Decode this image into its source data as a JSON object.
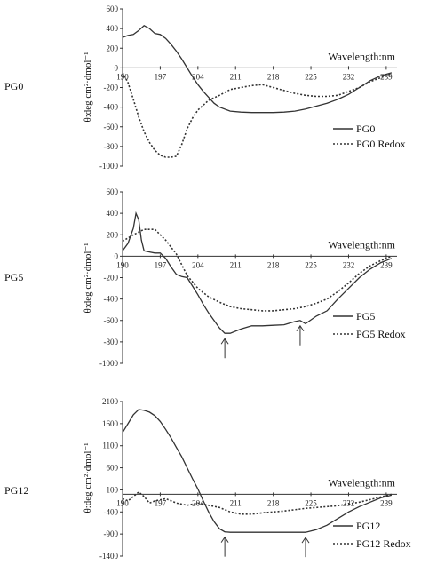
{
  "chart_data": [
    {
      "type": "line",
      "panel_label": "PG0",
      "ylabel": "θ:deg cm²·dmol⁻¹",
      "xlabel": "Wavelength:nm",
      "x_ticks": [
        "190",
        "197",
        "204",
        "211",
        "218",
        "225",
        "232",
        "239"
      ],
      "y_ticks": [
        "600",
        "400",
        "200",
        "0",
        "-200",
        "-400",
        "-600",
        "-800",
        "-1000"
      ],
      "xlim": [
        190,
        241
      ],
      "ylim": [
        -1000,
        600
      ],
      "arrows_at": [],
      "series": [
        {
          "name": "PG0",
          "style": "solid",
          "x": [
            190,
            191,
            192,
            193,
            194,
            195,
            196,
            197,
            198,
            199,
            200,
            201,
            202,
            203,
            204,
            205,
            206,
            207,
            208,
            210,
            212,
            214,
            216,
            218,
            220,
            222,
            224,
            226,
            228,
            230,
            232,
            234,
            236,
            238,
            240
          ],
          "y": [
            310,
            330,
            340,
            380,
            430,
            400,
            350,
            340,
            300,
            240,
            170,
            90,
            0,
            -90,
            -170,
            -240,
            -300,
            -360,
            -400,
            -440,
            -450,
            -455,
            -455,
            -455,
            -450,
            -440,
            -420,
            -390,
            -360,
            -320,
            -270,
            -200,
            -130,
            -80,
            -50
          ]
        },
        {
          "name": "PG0 Redox",
          "style": "dotted",
          "x": [
            190,
            191,
            192,
            193,
            194,
            195,
            196,
            197,
            198,
            199,
            200,
            201,
            202,
            203,
            204,
            205,
            206,
            208,
            210,
            212,
            214,
            216,
            218,
            220,
            222,
            224,
            226,
            228,
            230,
            232,
            234,
            236,
            238,
            240
          ],
          "y": [
            -50,
            -150,
            -320,
            -500,
            -650,
            -760,
            -840,
            -890,
            -910,
            -910,
            -900,
            -780,
            -620,
            -510,
            -430,
            -380,
            -330,
            -280,
            -220,
            -200,
            -180,
            -170,
            -200,
            -230,
            -260,
            -280,
            -290,
            -290,
            -280,
            -240,
            -200,
            -140,
            -100,
            -60
          ]
        }
      ]
    },
    {
      "type": "line",
      "panel_label": "PG5",
      "ylabel": "θ:deg cm²·dmol⁻¹",
      "xlabel": "Wavelength:nm",
      "x_ticks": [
        "190",
        "197",
        "204",
        "211",
        "218",
        "225",
        "232",
        "239"
      ],
      "y_ticks": [
        "600",
        "400",
        "200",
        "0",
        "-200",
        "-400",
        "-600",
        "-800",
        "-1000"
      ],
      "xlim": [
        190,
        241
      ],
      "ylim": [
        -1000,
        600
      ],
      "arrows_at": [
        209,
        223
      ],
      "series": [
        {
          "name": "PG5",
          "style": "solid",
          "x": [
            190,
            191,
            192,
            192.5,
            193,
            193.5,
            194,
            195,
            196,
            197,
            198,
            199,
            200,
            201,
            202,
            203,
            204,
            205,
            206,
            207,
            208,
            209,
            210,
            212,
            214,
            216,
            218,
            220,
            222,
            223,
            224,
            226,
            228,
            230,
            232,
            234,
            236,
            238,
            240
          ],
          "y": [
            50,
            120,
            260,
            400,
            340,
            150,
            50,
            40,
            30,
            30,
            -20,
            -100,
            -170,
            -190,
            -200,
            -280,
            -360,
            -450,
            -530,
            -600,
            -670,
            -720,
            -720,
            -680,
            -650,
            -650,
            -645,
            -640,
            -610,
            -600,
            -630,
            -560,
            -510,
            -400,
            -300,
            -200,
            -120,
            -60,
            -20
          ]
        },
        {
          "name": "PG5 Redox",
          "style": "dotted",
          "x": [
            190,
            192,
            194,
            196,
            198,
            200,
            202,
            204,
            206,
            208,
            210,
            212,
            214,
            216,
            218,
            220,
            222,
            224,
            226,
            228,
            230,
            232,
            234,
            236,
            238,
            240
          ],
          "y": [
            140,
            200,
            250,
            250,
            150,
            20,
            -180,
            -300,
            -380,
            -430,
            -470,
            -490,
            -500,
            -510,
            -510,
            -500,
            -490,
            -470,
            -440,
            -400,
            -330,
            -250,
            -160,
            -90,
            -40,
            0
          ]
        }
      ]
    },
    {
      "type": "line",
      "panel_label": "PG12",
      "ylabel": "θ:deg cm²·dmol⁻¹",
      "xlabel": "Wavelength:nm",
      "x_ticks": [
        "190",
        "197",
        "204",
        "211",
        "218",
        "225",
        "232",
        "239"
      ],
      "y_ticks": [
        "2100",
        "1600",
        "1100",
        "600",
        "100",
        "-400",
        "-900",
        "-1400"
      ],
      "xlim": [
        190,
        241
      ],
      "ylim": [
        -1400,
        2100
      ],
      "arrows_at": [
        209,
        224
      ],
      "series": [
        {
          "name": "PG12",
          "style": "solid",
          "x": [
            190,
            191,
            192,
            193,
            194,
            195,
            196,
            197,
            198,
            199,
            200,
            201,
            202,
            203,
            204,
            205,
            206,
            207,
            208,
            209,
            210,
            212,
            214,
            216,
            218,
            220,
            222,
            224,
            226,
            228,
            230,
            232,
            234,
            236,
            238,
            240
          ],
          "y": [
            1400,
            1600,
            1800,
            1920,
            1900,
            1860,
            1780,
            1650,
            1470,
            1280,
            1060,
            850,
            600,
            350,
            120,
            -150,
            -400,
            -620,
            -780,
            -850,
            -860,
            -860,
            -860,
            -860,
            -860,
            -860,
            -860,
            -860,
            -800,
            -700,
            -550,
            -400,
            -280,
            -180,
            -80,
            -20
          ]
        },
        {
          "name": "PG12 Redox",
          "style": "dotted",
          "x": [
            190,
            191,
            192,
            193,
            194,
            195,
            196,
            198,
            200,
            202,
            204,
            206,
            208,
            210,
            212,
            214,
            216,
            218,
            220,
            222,
            224,
            226,
            228,
            230,
            232,
            234,
            236,
            238,
            240
          ],
          "y": [
            -100,
            -150,
            -50,
            50,
            -50,
            -200,
            -150,
            -100,
            -200,
            -250,
            -200,
            -250,
            -300,
            -400,
            -450,
            -450,
            -420,
            -400,
            -380,
            -350,
            -320,
            -300,
            -280,
            -260,
            -220,
            -180,
            -120,
            -60,
            0
          ]
        }
      ]
    }
  ]
}
